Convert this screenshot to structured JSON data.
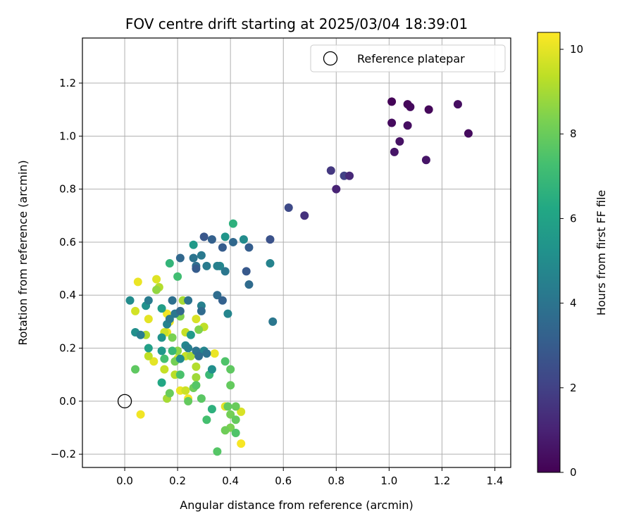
{
  "chart_data": {
    "type": "scatter",
    "title": "FOV centre drift starting at 2025/03/04 18:39:01",
    "xlabel": "Angular distance from reference (arcmin)",
    "ylabel": "Rotation from reference (arcmin)",
    "xlim": [
      -0.16,
      1.46
    ],
    "ylim": [
      -0.25,
      1.37
    ],
    "xticks": [
      0.0,
      0.2,
      0.4,
      0.6,
      0.8,
      1.0,
      1.2,
      1.4
    ],
    "xtick_labels": [
      "0.0",
      "0.2",
      "0.4",
      "0.6",
      "0.8",
      "1.0",
      "1.2",
      "1.4"
    ],
    "yticks": [
      -0.2,
      0.0,
      0.2,
      0.4,
      0.6,
      0.8,
      1.0,
      1.2
    ],
    "ytick_labels": [
      "−0.2",
      "0.0",
      "0.2",
      "0.4",
      "0.6",
      "0.8",
      "1.0",
      "1.2"
    ],
    "grid": true,
    "legend": {
      "position": "top-right",
      "label": "Reference platepar",
      "marker": "open-circle"
    },
    "reference_point": {
      "x": 0.0,
      "y": 0.0
    },
    "colorbar": {
      "label": "Hours from first FF file",
      "colormap": "viridis",
      "min": 0,
      "max": 10.4,
      "ticks": [
        0,
        2,
        4,
        6,
        8,
        10
      ],
      "tick_labels": [
        "0",
        "2",
        "4",
        "6",
        "8",
        "10"
      ]
    },
    "points": [
      {
        "x": 1.01,
        "y": 1.13,
        "c": 0.1
      },
      {
        "x": 1.07,
        "y": 1.12,
        "c": 0.2
      },
      {
        "x": 1.08,
        "y": 1.11,
        "c": 0.3
      },
      {
        "x": 1.15,
        "y": 1.1,
        "c": 0.2
      },
      {
        "x": 1.26,
        "y": 1.12,
        "c": 0.4
      },
      {
        "x": 1.01,
        "y": 1.05,
        "c": 0.3
      },
      {
        "x": 1.07,
        "y": 1.04,
        "c": 0.4
      },
      {
        "x": 1.3,
        "y": 1.01,
        "c": 0.3
      },
      {
        "x": 1.04,
        "y": 0.98,
        "c": 0.5
      },
      {
        "x": 1.02,
        "y": 0.94,
        "c": 0.6
      },
      {
        "x": 1.14,
        "y": 0.91,
        "c": 0.6
      },
      {
        "x": 0.78,
        "y": 0.87,
        "c": 1.7
      },
      {
        "x": 0.83,
        "y": 0.85,
        "c": 2.0
      },
      {
        "x": 0.85,
        "y": 0.85,
        "c": 1.2
      },
      {
        "x": 0.8,
        "y": 0.8,
        "c": 1.0
      },
      {
        "x": 0.62,
        "y": 0.73,
        "c": 2.3
      },
      {
        "x": 0.68,
        "y": 0.7,
        "c": 1.5
      },
      {
        "x": 0.55,
        "y": 0.61,
        "c": 2.6
      },
      {
        "x": 0.3,
        "y": 0.62,
        "c": 2.8
      },
      {
        "x": 0.33,
        "y": 0.61,
        "c": 3.2
      },
      {
        "x": 0.38,
        "y": 0.62,
        "c": 5.4
      },
      {
        "x": 0.41,
        "y": 0.6,
        "c": 3.5
      },
      {
        "x": 0.45,
        "y": 0.61,
        "c": 5.0
      },
      {
        "x": 0.26,
        "y": 0.59,
        "c": 5.6
      },
      {
        "x": 0.37,
        "y": 0.58,
        "c": 3.0
      },
      {
        "x": 0.47,
        "y": 0.58,
        "c": 3.1
      },
      {
        "x": 0.41,
        "y": 0.67,
        "c": 6.6
      },
      {
        "x": 0.21,
        "y": 0.54,
        "c": 3.5
      },
      {
        "x": 0.26,
        "y": 0.54,
        "c": 4.0
      },
      {
        "x": 0.29,
        "y": 0.55,
        "c": 4.2
      },
      {
        "x": 0.27,
        "y": 0.51,
        "c": 3.8
      },
      {
        "x": 0.31,
        "y": 0.51,
        "c": 4.3
      },
      {
        "x": 0.35,
        "y": 0.51,
        "c": 4.5
      },
      {
        "x": 0.36,
        "y": 0.51,
        "c": 4.8
      },
      {
        "x": 0.27,
        "y": 0.5,
        "c": 3.0
      },
      {
        "x": 0.38,
        "y": 0.49,
        "c": 4.1
      },
      {
        "x": 0.17,
        "y": 0.52,
        "c": 6.8
      },
      {
        "x": 0.55,
        "y": 0.52,
        "c": 4.6
      },
      {
        "x": 0.46,
        "y": 0.49,
        "c": 2.9
      },
      {
        "x": 0.47,
        "y": 0.44,
        "c": 3.6
      },
      {
        "x": 0.2,
        "y": 0.47,
        "c": 7.2
      },
      {
        "x": 0.35,
        "y": 0.4,
        "c": 3.7
      },
      {
        "x": 0.37,
        "y": 0.38,
        "c": 3.2
      },
      {
        "x": 0.39,
        "y": 0.33,
        "c": 4.7
      },
      {
        "x": 0.56,
        "y": 0.3,
        "c": 4.1
      },
      {
        "x": 0.02,
        "y": 0.38,
        "c": 5.0
      },
      {
        "x": 0.09,
        "y": 0.38,
        "c": 4.3
      },
      {
        "x": 0.08,
        "y": 0.36,
        "c": 5.2
      },
      {
        "x": 0.14,
        "y": 0.35,
        "c": 5.8
      },
      {
        "x": 0.18,
        "y": 0.38,
        "c": 3.8
      },
      {
        "x": 0.21,
        "y": 0.34,
        "c": 3.5
      },
      {
        "x": 0.24,
        "y": 0.38,
        "c": 3.9
      },
      {
        "x": 0.29,
        "y": 0.34,
        "c": 3.6
      },
      {
        "x": 0.29,
        "y": 0.36,
        "c": 4.5
      },
      {
        "x": 0.19,
        "y": 0.33,
        "c": 4.1
      },
      {
        "x": 0.17,
        "y": 0.31,
        "c": 4.2
      },
      {
        "x": 0.16,
        "y": 0.29,
        "c": 4.6
      },
      {
        "x": 0.04,
        "y": 0.26,
        "c": 5.1
      },
      {
        "x": 0.06,
        "y": 0.25,
        "c": 4.4
      },
      {
        "x": 0.14,
        "y": 0.24,
        "c": 5.3
      },
      {
        "x": 0.25,
        "y": 0.25,
        "c": 5.6
      },
      {
        "x": 0.23,
        "y": 0.21,
        "c": 4.8
      },
      {
        "x": 0.09,
        "y": 0.2,
        "c": 5.9
      },
      {
        "x": 0.14,
        "y": 0.19,
        "c": 5.5
      },
      {
        "x": 0.18,
        "y": 0.19,
        "c": 6.9
      },
      {
        "x": 0.24,
        "y": 0.2,
        "c": 4.4
      },
      {
        "x": 0.27,
        "y": 0.19,
        "c": 4.0
      },
      {
        "x": 0.3,
        "y": 0.19,
        "c": 4.7
      },
      {
        "x": 0.31,
        "y": 0.18,
        "c": 3.9
      },
      {
        "x": 0.28,
        "y": 0.17,
        "c": 3.7
      },
      {
        "x": 0.15,
        "y": 0.16,
        "c": 7.3
      },
      {
        "x": 0.21,
        "y": 0.16,
        "c": 5.0
      },
      {
        "x": 0.33,
        "y": 0.12,
        "c": 5.1
      },
      {
        "x": 0.32,
        "y": 0.1,
        "c": 7.0
      },
      {
        "x": 0.21,
        "y": 0.1,
        "c": 7.4
      },
      {
        "x": 0.14,
        "y": 0.07,
        "c": 6.2
      },
      {
        "x": 0.04,
        "y": 0.12,
        "c": 7.8
      },
      {
        "x": 0.17,
        "y": 0.03,
        "c": 8.0
      },
      {
        "x": 0.24,
        "y": 0.0,
        "c": 7.9
      },
      {
        "x": 0.29,
        "y": 0.01,
        "c": 7.7
      },
      {
        "x": 0.27,
        "y": 0.06,
        "c": 7.6
      },
      {
        "x": 0.26,
        "y": 0.05,
        "c": 8.1
      },
      {
        "x": 0.38,
        "y": 0.15,
        "c": 7.5
      },
      {
        "x": 0.4,
        "y": 0.12,
        "c": 7.8
      },
      {
        "x": 0.4,
        "y": 0.06,
        "c": 7.9
      },
      {
        "x": 0.33,
        "y": -0.03,
        "c": 6.6
      },
      {
        "x": 0.31,
        "y": -0.07,
        "c": 7.3
      },
      {
        "x": 0.39,
        "y": -0.02,
        "c": 7.9
      },
      {
        "x": 0.42,
        "y": -0.02,
        "c": 8.0
      },
      {
        "x": 0.4,
        "y": -0.05,
        "c": 8.2
      },
      {
        "x": 0.42,
        "y": -0.07,
        "c": 7.9
      },
      {
        "x": 0.38,
        "y": -0.11,
        "c": 8.1
      },
      {
        "x": 0.4,
        "y": -0.1,
        "c": 8.3
      },
      {
        "x": 0.42,
        "y": -0.12,
        "c": 7.5
      },
      {
        "x": 0.35,
        "y": -0.19,
        "c": 7.6
      },
      {
        "x": 0.44,
        "y": -0.16,
        "c": 10.3
      },
      {
        "x": 0.44,
        "y": -0.04,
        "c": 9.8
      },
      {
        "x": 0.38,
        "y": -0.02,
        "c": 10.0
      },
      {
        "x": 0.06,
        "y": -0.05,
        "c": 10.2
      },
      {
        "x": 0.05,
        "y": 0.45,
        "c": 10.1
      },
      {
        "x": 0.12,
        "y": 0.46,
        "c": 9.9
      },
      {
        "x": 0.12,
        "y": 0.42,
        "c": 8.7
      },
      {
        "x": 0.13,
        "y": 0.43,
        "c": 9.2
      },
      {
        "x": 0.04,
        "y": 0.34,
        "c": 9.7
      },
      {
        "x": 0.09,
        "y": 0.31,
        "c": 10.0
      },
      {
        "x": 0.16,
        "y": 0.33,
        "c": 10.2
      },
      {
        "x": 0.17,
        "y": 0.3,
        "c": 10.1
      },
      {
        "x": 0.21,
        "y": 0.32,
        "c": 8.4
      },
      {
        "x": 0.15,
        "y": 0.26,
        "c": 9.6
      },
      {
        "x": 0.16,
        "y": 0.26,
        "c": 10.2
      },
      {
        "x": 0.08,
        "y": 0.25,
        "c": 9.2
      },
      {
        "x": 0.23,
        "y": 0.26,
        "c": 9.5
      },
      {
        "x": 0.27,
        "y": 0.31,
        "c": 9.8
      },
      {
        "x": 0.28,
        "y": 0.27,
        "c": 8.4
      },
      {
        "x": 0.3,
        "y": 0.28,
        "c": 9.4
      },
      {
        "x": 0.18,
        "y": 0.24,
        "c": 8.3
      },
      {
        "x": 0.09,
        "y": 0.17,
        "c": 9.4
      },
      {
        "x": 0.11,
        "y": 0.15,
        "c": 10.0
      },
      {
        "x": 0.2,
        "y": 0.16,
        "c": 9.8
      },
      {
        "x": 0.23,
        "y": 0.17,
        "c": 9.5
      },
      {
        "x": 0.25,
        "y": 0.17,
        "c": 9.0
      },
      {
        "x": 0.27,
        "y": 0.13,
        "c": 9.2
      },
      {
        "x": 0.27,
        "y": 0.09,
        "c": 8.9
      },
      {
        "x": 0.15,
        "y": 0.12,
        "c": 9.5
      },
      {
        "x": 0.19,
        "y": 0.1,
        "c": 9.3
      },
      {
        "x": 0.23,
        "y": 0.04,
        "c": 9.6
      },
      {
        "x": 0.21,
        "y": 0.04,
        "c": 10.1
      },
      {
        "x": 0.27,
        "y": 0.06,
        "c": 9.4
      },
      {
        "x": 0.16,
        "y": 0.01,
        "c": 9.0
      },
      {
        "x": 0.34,
        "y": 0.18,
        "c": 10.1
      },
      {
        "x": 0.24,
        "y": 0.01,
        "c": 10.3
      },
      {
        "x": 0.22,
        "y": 0.38,
        "c": 9.0
      },
      {
        "x": 0.19,
        "y": 0.15,
        "c": 8.2
      },
      {
        "x": 0.2,
        "y": 0.19,
        "c": 8.6
      }
    ]
  }
}
